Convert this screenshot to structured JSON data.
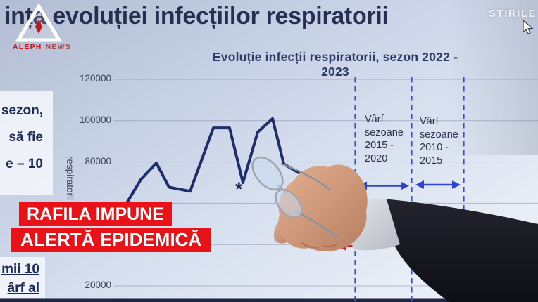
{
  "broadcast": {
    "headline": "ința evoluției infecțiilor respiratorii",
    "watermark": "STIRILE",
    "logo": {
      "name_1": "ALEPH",
      "name_2": "NEWS"
    },
    "lower_thirds": {
      "line_1": "RAFILA IMPUNE",
      "line_2": "ALERTĂ EPIDEMICĂ",
      "background_color": "#e71318",
      "text_color": "#ffffff"
    }
  },
  "slide": {
    "left_panel_top_lines": [
      "sezon,",
      "să fie",
      "e – 10"
    ],
    "left_panel_bottom_lines": [
      "mii 10",
      "ârf al"
    ]
  },
  "chart_data": {
    "type": "line",
    "title": "Evoluție infecții respiratorii, sezon 2022 - 2023",
    "ylabel": "respiratorii",
    "ylim": [
      20000,
      120000
    ],
    "grid": true,
    "legend": false,
    "yticks": [
      {
        "value": 120000,
        "label": "120000",
        "label_visible": true
      },
      {
        "value": 100000,
        "label": "100000",
        "label_visible": true
      },
      {
        "value": 80000,
        "label": "80000",
        "label_visible": true
      },
      {
        "value": 60000,
        "label": "60000",
        "label_visible": false
      },
      {
        "value": 40000,
        "label": "40000",
        "label_visible": false
      },
      {
        "value": 20000,
        "label": "20000",
        "label_visible": true
      }
    ],
    "series": [
      {
        "name": "Infecții respiratorii",
        "color": "#1d2e6b",
        "points": [
          {
            "x": 178,
            "value": 59000
          },
          {
            "x": 200,
            "value": 71500
          },
          {
            "x": 222,
            "value": 79500
          },
          {
            "x": 240,
            "value": 67800
          },
          {
            "x": 255,
            "value": 66800
          },
          {
            "x": 270,
            "value": 65800
          },
          {
            "x": 303,
            "value": 96500
          },
          {
            "x": 326,
            "value": 96500
          },
          {
            "x": 345,
            "value": 70000
          },
          {
            "x": 366,
            "value": 94500
          },
          {
            "x": 387,
            "value": 101000
          },
          {
            "x": 403,
            "value": 79000
          },
          {
            "x": 413,
            "value": 77000
          },
          {
            "x": 428,
            "value": 74000
          }
        ]
      }
    ],
    "annotations": [
      {
        "id": "varf-2015-2020",
        "text": "Vârf\nsezoane\n2015 -\n2020"
      },
      {
        "id": "varf-2010-2015",
        "text": "Vârf\nsezoane\n2010 -\n2015"
      },
      {
        "id": "star",
        "text": "*"
      }
    ],
    "divider_color": "#3a51c6",
    "arrow_color": "#2b45d2",
    "red_arrow_color": "#da1f12"
  }
}
